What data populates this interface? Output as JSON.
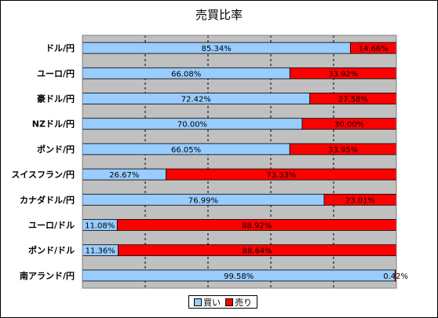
{
  "chart_data": {
    "type": "bar",
    "orientation": "horizontal",
    "stacked": "percent",
    "title": "売買比率",
    "categories": [
      "ドル/円",
      "ユーロ/円",
      "豪ドル/円",
      "NZドル/円",
      "ポンド/円",
      "スイスフラン/円",
      "カナダドル/円",
      "ユーロ/ドル",
      "ポンド/ドル",
      "南アランド/円"
    ],
    "series": [
      {
        "name": "買い",
        "color": "#99ccff",
        "values": [
          85.34,
          66.08,
          72.42,
          70.0,
          66.05,
          26.67,
          76.99,
          11.08,
          11.36,
          99.58
        ],
        "labels": [
          "85.34%",
          "66.08%",
          "72.42%",
          "70.00%",
          "66.05%",
          "26.67%",
          "76.99%",
          "11.08%",
          "11.36%",
          "99.58%"
        ]
      },
      {
        "name": "売り",
        "color": "#ff0000",
        "values": [
          14.66,
          33.92,
          27.58,
          30.0,
          33.95,
          73.33,
          23.01,
          88.92,
          88.64,
          0.42
        ],
        "labels": [
          "14.66%",
          "33.92%",
          "27.58%",
          "30.00%",
          "33.95%",
          "73.33%",
          "23.01%",
          "88.92%",
          "88.64%",
          "0.42%"
        ]
      }
    ],
    "xlim": [
      0,
      100
    ],
    "grid": true,
    "plot_background": "#c0c0c0",
    "legend_position": "bottom"
  }
}
